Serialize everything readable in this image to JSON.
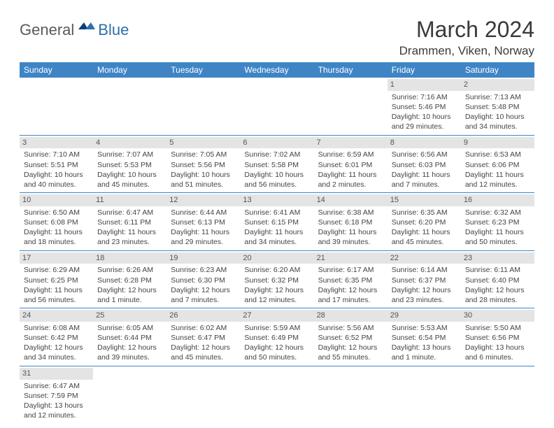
{
  "logo": {
    "part1": "General",
    "part2": "Blue"
  },
  "title": "March 2024",
  "location": "Drammen, Viken, Norway",
  "colors": {
    "header_bg": "#3f85c6",
    "header_text": "#ffffff",
    "daynum_bg": "#e4e4e4",
    "row_border": "#3f85c6",
    "logo_gray": "#5a5a5a",
    "logo_blue": "#2f6fad",
    "body_text": "#444444"
  },
  "weekdays": [
    "Sunday",
    "Monday",
    "Tuesday",
    "Wednesday",
    "Thursday",
    "Friday",
    "Saturday"
  ],
  "weeks": [
    [
      {
        "day": "",
        "lines": [
          "",
          "",
          "",
          ""
        ]
      },
      {
        "day": "",
        "lines": [
          "",
          "",
          "",
          ""
        ]
      },
      {
        "day": "",
        "lines": [
          "",
          "",
          "",
          ""
        ]
      },
      {
        "day": "",
        "lines": [
          "",
          "",
          "",
          ""
        ]
      },
      {
        "day": "",
        "lines": [
          "",
          "",
          "",
          ""
        ]
      },
      {
        "day": "1",
        "lines": [
          "Sunrise: 7:16 AM",
          "Sunset: 5:46 PM",
          "Daylight: 10 hours",
          "and 29 minutes."
        ]
      },
      {
        "day": "2",
        "lines": [
          "Sunrise: 7:13 AM",
          "Sunset: 5:48 PM",
          "Daylight: 10 hours",
          "and 34 minutes."
        ]
      }
    ],
    [
      {
        "day": "3",
        "lines": [
          "Sunrise: 7:10 AM",
          "Sunset: 5:51 PM",
          "Daylight: 10 hours",
          "and 40 minutes."
        ]
      },
      {
        "day": "4",
        "lines": [
          "Sunrise: 7:07 AM",
          "Sunset: 5:53 PM",
          "Daylight: 10 hours",
          "and 45 minutes."
        ]
      },
      {
        "day": "5",
        "lines": [
          "Sunrise: 7:05 AM",
          "Sunset: 5:56 PM",
          "Daylight: 10 hours",
          "and 51 minutes."
        ]
      },
      {
        "day": "6",
        "lines": [
          "Sunrise: 7:02 AM",
          "Sunset: 5:58 PM",
          "Daylight: 10 hours",
          "and 56 minutes."
        ]
      },
      {
        "day": "7",
        "lines": [
          "Sunrise: 6:59 AM",
          "Sunset: 6:01 PM",
          "Daylight: 11 hours",
          "and 2 minutes."
        ]
      },
      {
        "day": "8",
        "lines": [
          "Sunrise: 6:56 AM",
          "Sunset: 6:03 PM",
          "Daylight: 11 hours",
          "and 7 minutes."
        ]
      },
      {
        "day": "9",
        "lines": [
          "Sunrise: 6:53 AM",
          "Sunset: 6:06 PM",
          "Daylight: 11 hours",
          "and 12 minutes."
        ]
      }
    ],
    [
      {
        "day": "10",
        "lines": [
          "Sunrise: 6:50 AM",
          "Sunset: 6:08 PM",
          "Daylight: 11 hours",
          "and 18 minutes."
        ]
      },
      {
        "day": "11",
        "lines": [
          "Sunrise: 6:47 AM",
          "Sunset: 6:11 PM",
          "Daylight: 11 hours",
          "and 23 minutes."
        ]
      },
      {
        "day": "12",
        "lines": [
          "Sunrise: 6:44 AM",
          "Sunset: 6:13 PM",
          "Daylight: 11 hours",
          "and 29 minutes."
        ]
      },
      {
        "day": "13",
        "lines": [
          "Sunrise: 6:41 AM",
          "Sunset: 6:15 PM",
          "Daylight: 11 hours",
          "and 34 minutes."
        ]
      },
      {
        "day": "14",
        "lines": [
          "Sunrise: 6:38 AM",
          "Sunset: 6:18 PM",
          "Daylight: 11 hours",
          "and 39 minutes."
        ]
      },
      {
        "day": "15",
        "lines": [
          "Sunrise: 6:35 AM",
          "Sunset: 6:20 PM",
          "Daylight: 11 hours",
          "and 45 minutes."
        ]
      },
      {
        "day": "16",
        "lines": [
          "Sunrise: 6:32 AM",
          "Sunset: 6:23 PM",
          "Daylight: 11 hours",
          "and 50 minutes."
        ]
      }
    ],
    [
      {
        "day": "17",
        "lines": [
          "Sunrise: 6:29 AM",
          "Sunset: 6:25 PM",
          "Daylight: 11 hours",
          "and 56 minutes."
        ]
      },
      {
        "day": "18",
        "lines": [
          "Sunrise: 6:26 AM",
          "Sunset: 6:28 PM",
          "Daylight: 12 hours",
          "and 1 minute."
        ]
      },
      {
        "day": "19",
        "lines": [
          "Sunrise: 6:23 AM",
          "Sunset: 6:30 PM",
          "Daylight: 12 hours",
          "and 7 minutes."
        ]
      },
      {
        "day": "20",
        "lines": [
          "Sunrise: 6:20 AM",
          "Sunset: 6:32 PM",
          "Daylight: 12 hours",
          "and 12 minutes."
        ]
      },
      {
        "day": "21",
        "lines": [
          "Sunrise: 6:17 AM",
          "Sunset: 6:35 PM",
          "Daylight: 12 hours",
          "and 17 minutes."
        ]
      },
      {
        "day": "22",
        "lines": [
          "Sunrise: 6:14 AM",
          "Sunset: 6:37 PM",
          "Daylight: 12 hours",
          "and 23 minutes."
        ]
      },
      {
        "day": "23",
        "lines": [
          "Sunrise: 6:11 AM",
          "Sunset: 6:40 PM",
          "Daylight: 12 hours",
          "and 28 minutes."
        ]
      }
    ],
    [
      {
        "day": "24",
        "lines": [
          "Sunrise: 6:08 AM",
          "Sunset: 6:42 PM",
          "Daylight: 12 hours",
          "and 34 minutes."
        ]
      },
      {
        "day": "25",
        "lines": [
          "Sunrise: 6:05 AM",
          "Sunset: 6:44 PM",
          "Daylight: 12 hours",
          "and 39 minutes."
        ]
      },
      {
        "day": "26",
        "lines": [
          "Sunrise: 6:02 AM",
          "Sunset: 6:47 PM",
          "Daylight: 12 hours",
          "and 45 minutes."
        ]
      },
      {
        "day": "27",
        "lines": [
          "Sunrise: 5:59 AM",
          "Sunset: 6:49 PM",
          "Daylight: 12 hours",
          "and 50 minutes."
        ]
      },
      {
        "day": "28",
        "lines": [
          "Sunrise: 5:56 AM",
          "Sunset: 6:52 PM",
          "Daylight: 12 hours",
          "and 55 minutes."
        ]
      },
      {
        "day": "29",
        "lines": [
          "Sunrise: 5:53 AM",
          "Sunset: 6:54 PM",
          "Daylight: 13 hours",
          "and 1 minute."
        ]
      },
      {
        "day": "30",
        "lines": [
          "Sunrise: 5:50 AM",
          "Sunset: 6:56 PM",
          "Daylight: 13 hours",
          "and 6 minutes."
        ]
      }
    ],
    [
      {
        "day": "31",
        "lines": [
          "Sunrise: 6:47 AM",
          "Sunset: 7:59 PM",
          "Daylight: 13 hours",
          "and 12 minutes."
        ]
      },
      {
        "day": "",
        "lines": [
          "",
          "",
          "",
          ""
        ]
      },
      {
        "day": "",
        "lines": [
          "",
          "",
          "",
          ""
        ]
      },
      {
        "day": "",
        "lines": [
          "",
          "",
          "",
          ""
        ]
      },
      {
        "day": "",
        "lines": [
          "",
          "",
          "",
          ""
        ]
      },
      {
        "day": "",
        "lines": [
          "",
          "",
          "",
          ""
        ]
      },
      {
        "day": "",
        "lines": [
          "",
          "",
          "",
          ""
        ]
      }
    ]
  ]
}
